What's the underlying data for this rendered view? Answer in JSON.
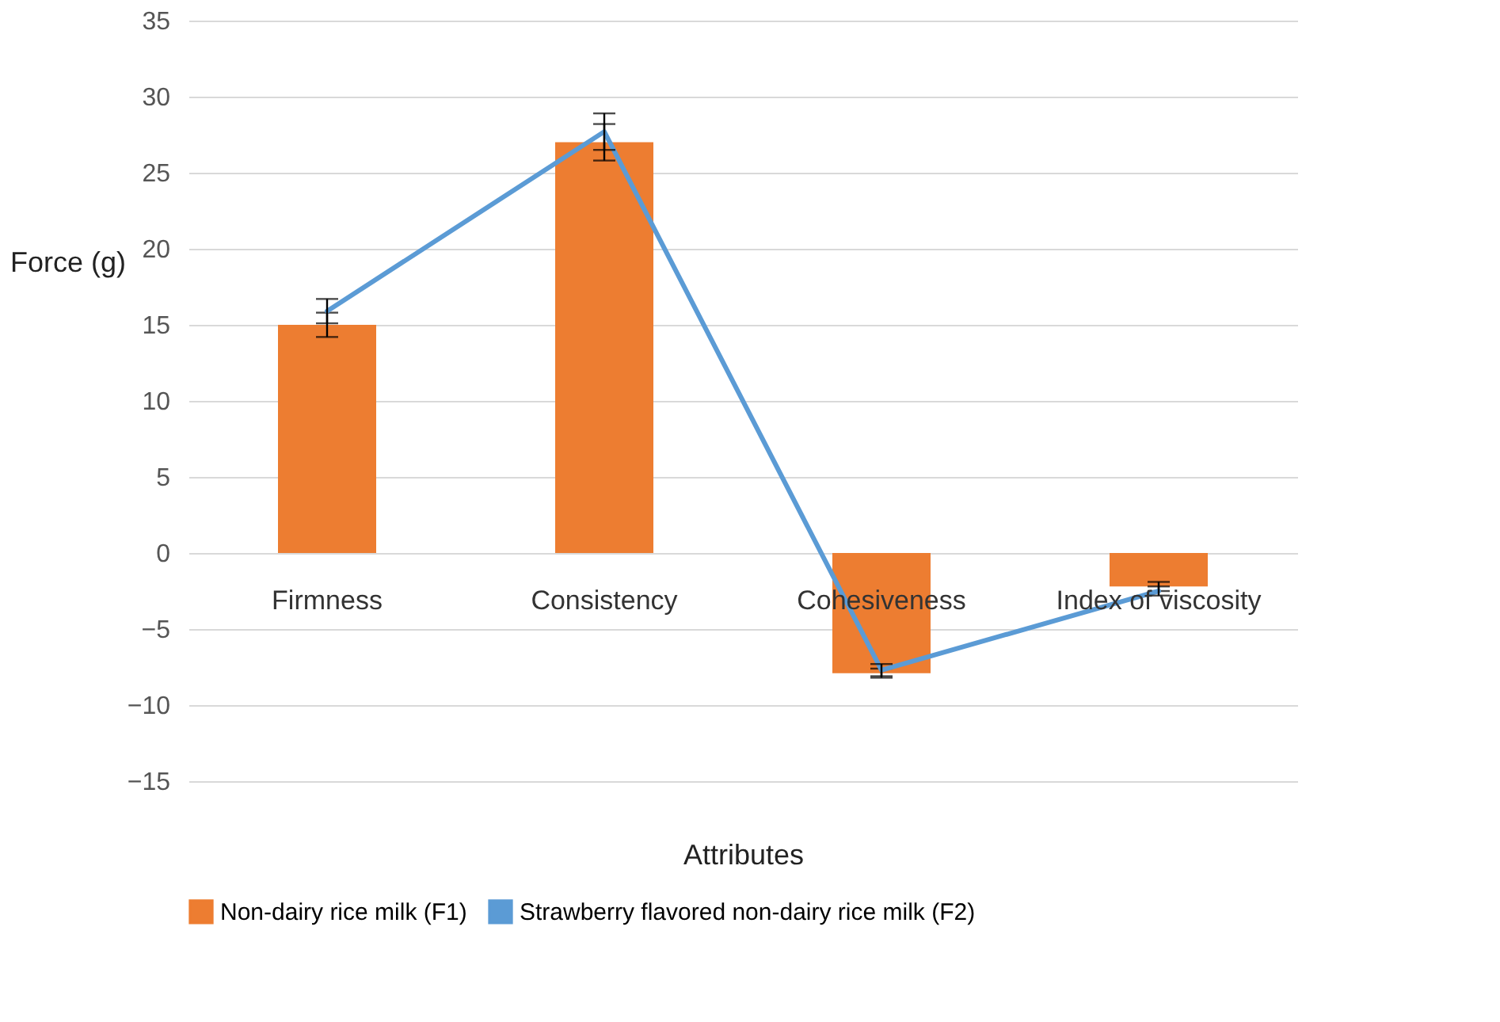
{
  "chart_data": {
    "type": "bar",
    "xlabel": "Attributes",
    "ylabel": "Force (g)",
    "categories": [
      "Firmness",
      "Consistency",
      "Cohesiveness",
      "Index of viscosity"
    ],
    "series": [
      {
        "name": "Non-dairy rice milk (F1)",
        "color": "#ed7d31",
        "values": [
          15,
          27,
          -7.9,
          -2.2
        ],
        "errors": [
          0.8,
          1.2,
          0.3,
          0.3
        ]
      },
      {
        "name": "Strawberry flavored non-dairy rice milk (F2)",
        "type": "line",
        "color": "#5b9bd5",
        "values": [
          15.9,
          27.7,
          -7.7,
          -2.5
        ],
        "errors": [
          0.8,
          1.2,
          0.4,
          0.3
        ]
      }
    ],
    "ylim": [
      -15,
      35
    ],
    "yticks": [
      -15,
      -10,
      -5,
      0,
      5,
      10,
      15,
      20,
      25,
      30,
      35
    ],
    "grid": "y",
    "legend": "bottom"
  }
}
